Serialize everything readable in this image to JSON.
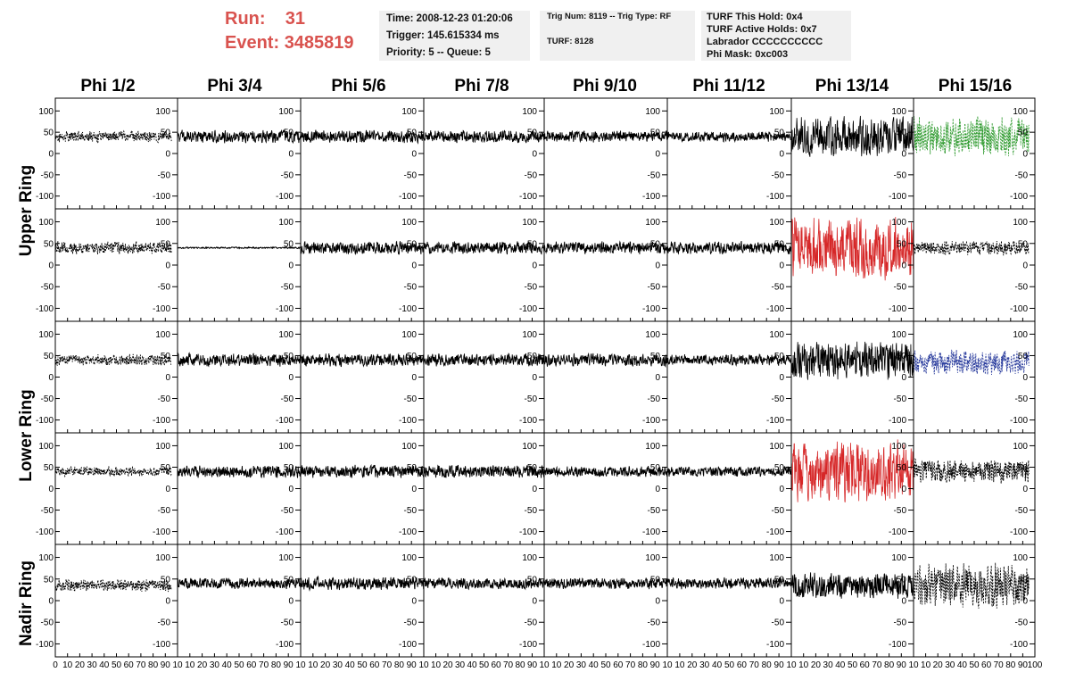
{
  "header": {
    "run_label": "Run:",
    "run_value": "31",
    "event_label": "Event:",
    "event_value": "3485819"
  },
  "info_boxes": {
    "time": "Time: 2008-12-23 01:20:06",
    "trigger": "Trigger: 145.615334 ms",
    "priority": "Priority: 5 -- Queue: 5",
    "trig_num": "Trig Num: 8119 -- Trig Type: RF",
    "turf": "TURF: 8128",
    "turf_this_hold": "TURF This Hold: 0x4",
    "turf_active_holds": "TURF Active Holds: 0x7",
    "labrador": "Labrador CCCCCCCCCC",
    "phi_mask": "Phi Mask: 0xc003"
  },
  "colors": {
    "header_red": "#d9534f",
    "info_bg": "#f0f0f0",
    "trace_black": "#000000",
    "trace_red": "#d62728",
    "trace_green": "#2e9a2e",
    "trace_blue": "#2c3e9e"
  },
  "chart_data": {
    "type": "line",
    "columns": [
      "Phi 1/2",
      "Phi 3/4",
      "Phi 5/6",
      "Phi 7/8",
      "Phi 9/10",
      "Phi 11/12",
      "Phi 13/14",
      "Phi 15/16"
    ],
    "ring_labels": [
      "Upper Ring",
      "Lower Ring",
      "Nadir Ring"
    ],
    "rows_per_ring": [
      2,
      2,
      1
    ],
    "ylim": [
      -130,
      130
    ],
    "xlim": [
      0,
      100
    ],
    "yticks": [
      -100,
      -50,
      0,
      50,
      100
    ],
    "ytick_labels": [
      "-100",
      "-50",
      "0",
      "50",
      "100"
    ],
    "xticks": [
      0,
      10,
      20,
      30,
      40,
      50,
      60,
      70,
      80,
      90,
      100
    ],
    "xtick_labels_first": [
      "0",
      "10",
      "20",
      "30",
      "40",
      "50",
      "60",
      "70",
      "80",
      "90",
      "10"
    ],
    "xtick_labels_middle": [
      "10",
      "20",
      "30",
      "40",
      "50",
      "60",
      "70",
      "80",
      "90",
      "10"
    ],
    "xtick_labels_last": [
      "10",
      "20",
      "30",
      "40",
      "50",
      "60",
      "70",
      "80",
      "90",
      "100"
    ],
    "rows": [
      {
        "offsets": [
          40,
          40,
          40,
          40,
          40,
          40,
          40,
          40
        ],
        "amplitudes": [
          14,
          16,
          16,
          16,
          15,
          13,
          50,
          50
        ],
        "colors": [
          "black",
          "black",
          "black",
          "black",
          "black",
          "black",
          "black",
          "green"
        ],
        "dashed": [
          true,
          false,
          false,
          false,
          false,
          false,
          false,
          true
        ],
        "xmax": [
          95,
          100,
          100,
          100,
          100,
          100,
          100,
          95
        ]
      },
      {
        "offsets": [
          40,
          40,
          40,
          40,
          40,
          40,
          40,
          40
        ],
        "amplitudes": [
          16,
          2,
          16,
          16,
          16,
          16,
          78,
          18
        ],
        "colors": [
          "black",
          "black",
          "black",
          "black",
          "black",
          "black",
          "red",
          "black"
        ],
        "dashed": [
          true,
          false,
          false,
          false,
          false,
          false,
          false,
          true
        ],
        "xmax": [
          95,
          100,
          100,
          100,
          100,
          100,
          100,
          95
        ]
      },
      {
        "offsets": [
          40,
          40,
          40,
          40,
          40,
          40,
          40,
          35
        ],
        "amplitudes": [
          14,
          16,
          16,
          16,
          16,
          14,
          50,
          30
        ],
        "colors": [
          "black",
          "black",
          "black",
          "black",
          "black",
          "black",
          "black",
          "blue"
        ],
        "dashed": [
          true,
          false,
          false,
          false,
          false,
          false,
          false,
          true
        ],
        "xmax": [
          95,
          100,
          100,
          100,
          100,
          100,
          100,
          95
        ]
      },
      {
        "offsets": [
          40,
          40,
          40,
          40,
          40,
          40,
          40,
          40
        ],
        "amplitudes": [
          12,
          16,
          16,
          16,
          13,
          13,
          78,
          30
        ],
        "colors": [
          "black",
          "black",
          "black",
          "black",
          "black",
          "black",
          "red",
          "black"
        ],
        "dashed": [
          true,
          false,
          false,
          false,
          false,
          false,
          false,
          true
        ],
        "xmax": [
          95,
          100,
          100,
          100,
          100,
          100,
          100,
          95
        ]
      },
      {
        "offsets": [
          35,
          40,
          40,
          40,
          40,
          40,
          35,
          35
        ],
        "amplitudes": [
          16,
          14,
          16,
          14,
          14,
          14,
          32,
          55
        ],
        "colors": [
          "black",
          "black",
          "black",
          "black",
          "black",
          "black",
          "black",
          "black"
        ],
        "dashed": [
          true,
          false,
          false,
          false,
          false,
          false,
          false,
          true
        ],
        "xmax": [
          95,
          100,
          100,
          100,
          100,
          100,
          100,
          95
        ]
      }
    ]
  }
}
